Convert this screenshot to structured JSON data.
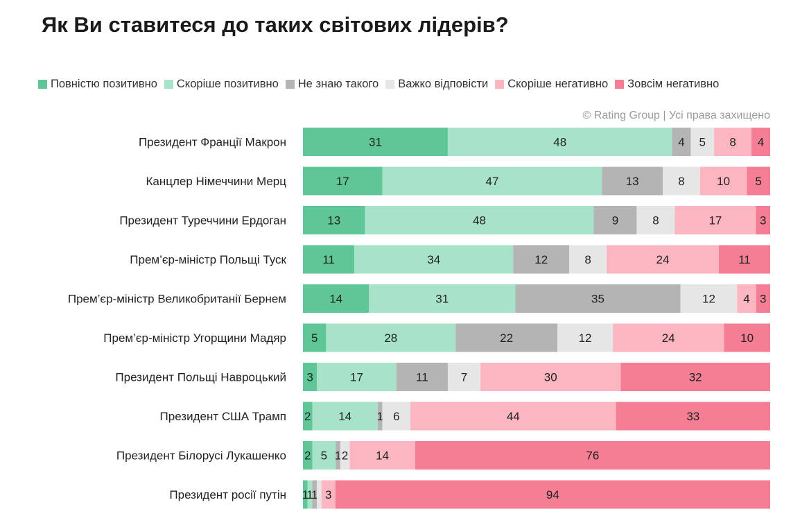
{
  "chart_data": {
    "type": "bar",
    "orientation": "horizontal",
    "stacked": true,
    "title": "Як Ви ставитеся до таких світових лідерів?",
    "source_note": "© Rating Group | Усі права захищено",
    "legend_position": "top",
    "grid": false,
    "xlim": [
      0,
      100
    ],
    "categories": [
      "Президент Франції Макрон",
      "Канцлер Німеччини Мерц",
      "Президент Туреччини Ердоган",
      "Прем’єр-міністр Польщі Туск",
      "Прем’єр-міністр Великобританії Бернем",
      "Прем’єр-міністр Угорщини Мадяр",
      "Президент Польщі Навроцький",
      "Президент США Трамп",
      "Президент Білорусі Лукашенко",
      "Президент росії путін"
    ],
    "series": [
      {
        "name": "Повністю позитивно",
        "color": "#5ec697",
        "values": [
          31,
          17,
          13,
          11,
          14,
          5,
          3,
          2,
          2,
          1
        ]
      },
      {
        "name": "Скоріше позитивно",
        "color": "#a7e3c8",
        "values": [
          48,
          47,
          48,
          34,
          31,
          28,
          17,
          14,
          5,
          1
        ]
      },
      {
        "name": "Не знаю такого",
        "color": "#b4b4b4",
        "values": [
          4,
          13,
          9,
          12,
          35,
          22,
          11,
          1,
          1,
          1
        ]
      },
      {
        "name": "Важко відповісти",
        "color": "#e6e6e6",
        "values": [
          5,
          8,
          8,
          8,
          12,
          12,
          7,
          6,
          2,
          1
        ]
      },
      {
        "name": "Скоріше негативно",
        "color": "#fbb6c2",
        "values": [
          8,
          10,
          17,
          24,
          4,
          24,
          30,
          44,
          14,
          3
        ]
      },
      {
        "name": "Зовсім негативно",
        "color": "#f47f94",
        "values": [
          4,
          5,
          3,
          11,
          3,
          10,
          32,
          33,
          76,
          94
        ]
      }
    ],
    "data_labels": [
      [
        "31",
        "48",
        "4",
        "5",
        "8",
        "4"
      ],
      [
        "17",
        "47",
        "13",
        "8",
        "10",
        "5"
      ],
      [
        "13",
        "48",
        "9",
        "8",
        "17",
        "3"
      ],
      [
        "11",
        "34",
        "12",
        "8",
        "24",
        "11"
      ],
      [
        "14",
        "31",
        "35",
        "12",
        "4",
        "3"
      ],
      [
        "5",
        "28",
        "22",
        "12",
        "24",
        "10"
      ],
      [
        "3",
        "17",
        "11",
        "7",
        "30",
        "32"
      ],
      [
        "2",
        "14",
        "1",
        "6",
        "44",
        "33"
      ],
      [
        "2",
        "5",
        "1",
        "2",
        "14",
        "76"
      ],
      [
        "1",
        "1",
        "1",
        "",
        "3",
        "94"
      ]
    ]
  }
}
